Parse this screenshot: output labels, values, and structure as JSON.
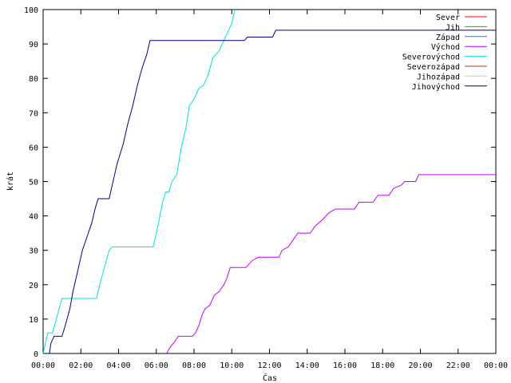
{
  "chart_data": {
    "type": "line",
    "title": "",
    "xlabel": "Čas",
    "ylabel": "krát",
    "xlim_hours": [
      0,
      24
    ],
    "ylim": [
      0,
      100
    ],
    "grid": false,
    "legend_position": "top-right",
    "x_tick_labels": [
      "00:00",
      "02:00",
      "04:00",
      "06:00",
      "08:00",
      "10:00",
      "12:00",
      "14:00",
      "16:00",
      "18:00",
      "20:00",
      "22:00",
      "00:00"
    ],
    "y_ticks": [
      0,
      10,
      20,
      30,
      40,
      50,
      60,
      70,
      80,
      90,
      100
    ],
    "series": [
      {
        "name": "Sever",
        "color": "#ff0000",
        "points": []
      },
      {
        "name": "Jih",
        "color": "#00c000",
        "points": []
      },
      {
        "name": "Západ",
        "color": "#0080ff",
        "points": []
      },
      {
        "name": "Východ",
        "color": "#c000ff",
        "points": [
          [
            "06:33",
            0
          ],
          [
            "06:45",
            2
          ],
          [
            "06:55",
            3
          ],
          [
            "07:10",
            5
          ],
          [
            "07:55",
            5
          ],
          [
            "08:05",
            6
          ],
          [
            "08:15",
            8
          ],
          [
            "08:25",
            11
          ],
          [
            "08:35",
            13
          ],
          [
            "08:50",
            14
          ],
          [
            "09:05",
            17
          ],
          [
            "09:20",
            18
          ],
          [
            "09:35",
            20
          ],
          [
            "09:45",
            22
          ],
          [
            "09:55",
            25
          ],
          [
            "10:45",
            25
          ],
          [
            "11:05",
            27
          ],
          [
            "11:25",
            28
          ],
          [
            "12:30",
            28
          ],
          [
            "12:40",
            30
          ],
          [
            "13:00",
            31
          ],
          [
            "13:15",
            33
          ],
          [
            "13:30",
            35
          ],
          [
            "14:10",
            35
          ],
          [
            "14:25",
            37
          ],
          [
            "14:50",
            39
          ],
          [
            "15:10",
            41
          ],
          [
            "15:30",
            42
          ],
          [
            "16:30",
            42
          ],
          [
            "16:45",
            44
          ],
          [
            "17:30",
            44
          ],
          [
            "17:45",
            46
          ],
          [
            "18:20",
            46
          ],
          [
            "18:35",
            48
          ],
          [
            "19:00",
            49
          ],
          [
            "19:10",
            50
          ],
          [
            "19:45",
            50
          ],
          [
            "19:55",
            52
          ],
          [
            "24:00",
            52
          ]
        ]
      },
      {
        "name": "Severovýchod",
        "color": "#00e0e0",
        "points": [
          [
            "00:00",
            0
          ],
          [
            "00:10",
            4
          ],
          [
            "00:15",
            6
          ],
          [
            "00:30",
            6
          ],
          [
            "00:45",
            11
          ],
          [
            "01:00",
            16
          ],
          [
            "02:50",
            16
          ],
          [
            "03:00",
            20
          ],
          [
            "03:15",
            25
          ],
          [
            "03:30",
            30
          ],
          [
            "03:40",
            31
          ],
          [
            "05:50",
            31
          ],
          [
            "06:05",
            37
          ],
          [
            "06:20",
            44
          ],
          [
            "06:30",
            47
          ],
          [
            "06:40",
            47
          ],
          [
            "06:50",
            50
          ],
          [
            "07:05",
            52
          ],
          [
            "07:20",
            60
          ],
          [
            "07:35",
            66
          ],
          [
            "07:45",
            72
          ],
          [
            "08:00",
            74
          ],
          [
            "08:15",
            77
          ],
          [
            "08:30",
            78
          ],
          [
            "08:45",
            81
          ],
          [
            "09:00",
            86
          ],
          [
            "09:20",
            88
          ],
          [
            "09:35",
            91
          ],
          [
            "09:50",
            94
          ],
          [
            "10:00",
            96
          ],
          [
            "10:10",
            100
          ]
        ]
      },
      {
        "name": "Severozápad",
        "color": "#c04000",
        "points": []
      },
      {
        "name": "Jihozápad",
        "color": "#ffd700",
        "points": []
      },
      {
        "name": "Jihovýchod",
        "color": "#000080",
        "points": [
          [
            "00:20",
            0
          ],
          [
            "00:25",
            3
          ],
          [
            "00:35",
            5
          ],
          [
            "01:00",
            5
          ],
          [
            "01:10",
            8
          ],
          [
            "01:25",
            13
          ],
          [
            "01:35",
            18
          ],
          [
            "01:50",
            24
          ],
          [
            "02:05",
            30
          ],
          [
            "02:20",
            34
          ],
          [
            "02:35",
            38
          ],
          [
            "02:45",
            42
          ],
          [
            "02:55",
            45
          ],
          [
            "03:30",
            45
          ],
          [
            "03:40",
            49
          ],
          [
            "03:55",
            55
          ],
          [
            "04:15",
            61
          ],
          [
            "04:30",
            67
          ],
          [
            "04:45",
            72
          ],
          [
            "05:00",
            78
          ],
          [
            "05:15",
            83
          ],
          [
            "05:30",
            87
          ],
          [
            "05:40",
            91
          ],
          [
            "10:40",
            91
          ],
          [
            "10:50",
            92
          ],
          [
            "12:10",
            92
          ],
          [
            "12:20",
            94
          ],
          [
            "24:00",
            94
          ]
        ]
      }
    ]
  }
}
